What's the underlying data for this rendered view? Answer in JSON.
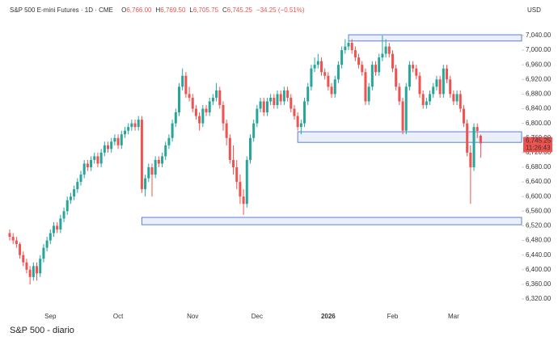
{
  "chart_data": {
    "type": "candlestick",
    "title": "S&P 500 E-mini Futures · 1D · CME",
    "ohlc_fields": [
      {
        "name": "O",
        "value": 6766,
        "value_label": "6,766.00"
      },
      {
        "name": "H",
        "value": 6769.5,
        "value_label": "6,769.50"
      },
      {
        "name": "L",
        "value": 6705.75,
        "value_label": "6,705.75"
      },
      {
        "name": "C",
        "value": 6745.25,
        "value_label": "6,745.25"
      }
    ],
    "change_label": "−34.25 (−0.51%)",
    "currency": "USD",
    "last_price": 6745.25,
    "last_price_label": "6,745.25",
    "countdown": "11:26:43",
    "caption": "S&P 500 - diario",
    "up_color": "#26a69a",
    "down_color": "#ef5350",
    "zone_color": "#5b7fd6",
    "ylim": [
      6298,
      7126
    ],
    "yticks": [
      {
        "value": 6320,
        "label": "6,320.00"
      },
      {
        "value": 6360,
        "label": "6,360.00"
      },
      {
        "value": 6400,
        "label": "6,400.00"
      },
      {
        "value": 6440,
        "label": "6,440.00"
      },
      {
        "value": 6480,
        "label": "6,480.00"
      },
      {
        "value": 6520,
        "label": "6,520.00"
      },
      {
        "value": 6560,
        "label": "6,560.00"
      },
      {
        "value": 6600,
        "label": "6,600.00"
      },
      {
        "value": 6640,
        "label": "6,640.00"
      },
      {
        "value": 6680,
        "label": "6,680.00"
      },
      {
        "value": 6720,
        "label": "6,720.00"
      },
      {
        "value": 6760,
        "label": "6,760.00"
      },
      {
        "value": 6800,
        "label": "6,800.00"
      },
      {
        "value": 6840,
        "label": "6,840.00"
      },
      {
        "value": 6880,
        "label": "6,880.00"
      },
      {
        "value": 6920,
        "label": "6,920.00"
      },
      {
        "value": 6960,
        "label": "6,960.00"
      },
      {
        "value": 7000,
        "label": "7,000.00"
      },
      {
        "value": 7040,
        "label": "7,040.00"
      }
    ],
    "zones": [
      {
        "start": 100,
        "values": [
          7025,
          7042
        ]
      },
      {
        "start": 85,
        "values": [
          6748,
          6777
        ]
      },
      {
        "start": 39,
        "values": [
          6523,
          6543
        ]
      }
    ],
    "categories": [
      null,
      null,
      null,
      null,
      null,
      null,
      null,
      null,
      null,
      null,
      null,
      null,
      "Sep",
      null,
      null,
      null,
      null,
      null,
      null,
      null,
      null,
      null,
      null,
      null,
      null,
      null,
      null,
      null,
      null,
      null,
      null,
      null,
      "Oct",
      null,
      null,
      null,
      null,
      null,
      null,
      null,
      null,
      null,
      null,
      null,
      null,
      null,
      null,
      null,
      null,
      null,
      null,
      null,
      null,
      null,
      "Nov",
      null,
      null,
      null,
      null,
      null,
      null,
      null,
      null,
      null,
      null,
      null,
      null,
      null,
      null,
      null,
      null,
      null,
      null,
      "Dec",
      null,
      null,
      null,
      null,
      null,
      null,
      null,
      null,
      null,
      null,
      null,
      null,
      null,
      null,
      null,
      null,
      null,
      null,
      null,
      null,
      "2026",
      null,
      null,
      null,
      null,
      null,
      null,
      null,
      null,
      null,
      null,
      null,
      null,
      null,
      null,
      null,
      null,
      null,
      null,
      "Feb",
      null,
      null,
      null,
      null,
      null,
      null,
      null,
      null,
      null,
      null,
      null,
      null,
      null,
      null,
      null,
      null,
      null,
      "Mar",
      null,
      null,
      null,
      null,
      null,
      null,
      null,
      null
    ],
    "ohlc": [
      [
        6500,
        6510,
        6480,
        6490
      ],
      [
        6490,
        6500,
        6470,
        6480
      ],
      [
        6480,
        6490,
        6460,
        6470
      ],
      [
        6470,
        6475,
        6430,
        6440
      ],
      [
        6440,
        6450,
        6410,
        6420
      ],
      [
        6420,
        6430,
        6390,
        6400
      ],
      [
        6400,
        6410,
        6360,
        6380
      ],
      [
        6380,
        6420,
        6370,
        6410
      ],
      [
        6410,
        6420,
        6370,
        6390
      ],
      [
        6390,
        6440,
        6380,
        6430
      ],
      [
        6430,
        6470,
        6420,
        6460
      ],
      [
        6460,
        6490,
        6450,
        6480
      ],
      [
        6480,
        6510,
        6470,
        6500
      ],
      [
        6500,
        6530,
        6490,
        6520
      ],
      [
        6520,
        6530,
        6500,
        6510
      ],
      [
        6510,
        6550,
        6500,
        6540
      ],
      [
        6540,
        6570,
        6530,
        6560
      ],
      [
        6560,
        6600,
        6550,
        6590
      ],
      [
        6590,
        6610,
        6580,
        6600
      ],
      [
        6600,
        6630,
        6590,
        6620
      ],
      [
        6620,
        6650,
        6610,
        6640
      ],
      [
        6640,
        6670,
        6630,
        6660
      ],
      [
        6660,
        6700,
        6650,
        6690
      ],
      [
        6690,
        6700,
        6670,
        6680
      ],
      [
        6680,
        6710,
        6670,
        6700
      ],
      [
        6700,
        6720,
        6690,
        6710
      ],
      [
        6710,
        6720,
        6680,
        6690
      ],
      [
        6690,
        6730,
        6680,
        6720
      ],
      [
        6720,
        6750,
        6710,
        6740
      ],
      [
        6740,
        6750,
        6720,
        6730
      ],
      [
        6730,
        6760,
        6720,
        6750
      ],
      [
        6750,
        6770,
        6740,
        6760
      ],
      [
        6760,
        6770,
        6730,
        6740
      ],
      [
        6740,
        6780,
        6730,
        6770
      ],
      [
        6770,
        6790,
        6760,
        6780
      ],
      [
        6780,
        6800,
        6770,
        6790
      ],
      [
        6790,
        6810,
        6780,
        6800
      ],
      [
        6800,
        6810,
        6780,
        6790
      ],
      [
        6790,
        6820,
        6780,
        6810
      ],
      [
        6810,
        6820,
        6610,
        6620
      ],
      [
        6620,
        6660,
        6600,
        6650
      ],
      [
        6650,
        6690,
        6640,
        6680
      ],
      [
        6680,
        6690,
        6600,
        6660
      ],
      [
        6660,
        6710,
        6650,
        6700
      ],
      [
        6700,
        6710,
        6680,
        6690
      ],
      [
        6690,
        6720,
        6680,
        6710
      ],
      [
        6710,
        6750,
        6700,
        6740
      ],
      [
        6740,
        6770,
        6730,
        6760
      ],
      [
        6760,
        6810,
        6750,
        6800
      ],
      [
        6800,
        6840,
        6790,
        6830
      ],
      [
        6830,
        6910,
        6820,
        6900
      ],
      [
        6900,
        6950,
        6890,
        6930
      ],
      [
        6930,
        6940,
        6870,
        6880
      ],
      [
        6880,
        6900,
        6860,
        6870
      ],
      [
        6870,
        6880,
        6830,
        6840
      ],
      [
        6840,
        6850,
        6810,
        6820
      ],
      [
        6820,
        6830,
        6780,
        6800
      ],
      [
        6800,
        6850,
        6790,
        6840
      ],
      [
        6840,
        6850,
        6820,
        6830
      ],
      [
        6830,
        6870,
        6820,
        6860
      ],
      [
        6860,
        6880,
        6850,
        6870
      ],
      [
        6870,
        6910,
        6860,
        6890
      ],
      [
        6890,
        6900,
        6840,
        6850
      ],
      [
        6850,
        6860,
        6780,
        6800
      ],
      [
        6800,
        6810,
        6740,
        6760
      ],
      [
        6760,
        6770,
        6690,
        6700
      ],
      [
        6700,
        6740,
        6660,
        6680
      ],
      [
        6680,
        6700,
        6620,
        6640
      ],
      [
        6640,
        6660,
        6580,
        6600
      ],
      [
        6600,
        6620,
        6550,
        6580
      ],
      [
        6580,
        6710,
        6570,
        6700
      ],
      [
        6700,
        6770,
        6690,
        6760
      ],
      [
        6760,
        6810,
        6750,
        6800
      ],
      [
        6800,
        6850,
        6790,
        6840
      ],
      [
        6840,
        6870,
        6830,
        6860
      ],
      [
        6860,
        6870,
        6820,
        6830
      ],
      [
        6830,
        6870,
        6820,
        6860
      ],
      [
        6860,
        6880,
        6850,
        6870
      ],
      [
        6870,
        6880,
        6840,
        6850
      ],
      [
        6850,
        6890,
        6840,
        6880
      ],
      [
        6880,
        6890,
        6850,
        6860
      ],
      [
        6860,
        6900,
        6850,
        6890
      ],
      [
        6890,
        6900,
        6860,
        6870
      ],
      [
        6870,
        6880,
        6830,
        6840
      ],
      [
        6840,
        6850,
        6810,
        6820
      ],
      [
        6820,
        6830,
        6780,
        6790
      ],
      [
        6790,
        6810,
        6770,
        6800
      ],
      [
        6800,
        6870,
        6790,
        6860
      ],
      [
        6860,
        6910,
        6850,
        6900
      ],
      [
        6900,
        6960,
        6890,
        6950
      ],
      [
        6950,
        6980,
        6940,
        6960
      ],
      [
        6960,
        6990,
        6950,
        6970
      ],
      [
        6970,
        6980,
        6930,
        6940
      ],
      [
        6940,
        6950,
        6920,
        6930
      ],
      [
        6930,
        6940,
        6890,
        6900
      ],
      [
        6900,
        6910,
        6870,
        6880
      ],
      [
        6880,
        6930,
        6870,
        6920
      ],
      [
        6920,
        6970,
        6910,
        6960
      ],
      [
        6960,
        7010,
        6950,
        7000
      ],
      [
        7000,
        7030,
        6990,
        7010
      ],
      [
        7010,
        7030,
        7000,
        7020
      ],
      [
        7020,
        7030,
        6990,
        7000
      ],
      [
        7000,
        7010,
        6970,
        6980
      ],
      [
        6980,
        6990,
        6950,
        6960
      ],
      [
        6960,
        6970,
        6930,
        6940
      ],
      [
        6940,
        6950,
        6850,
        6860
      ],
      [
        6860,
        6910,
        6850,
        6900
      ],
      [
        6900,
        6970,
        6890,
        6960
      ],
      [
        6960,
        6970,
        6930,
        6940
      ],
      [
        6940,
        6990,
        6930,
        6980
      ],
      [
        6980,
        7040,
        6970,
        6990
      ],
      [
        6990,
        7030,
        6980,
        7010
      ],
      [
        7010,
        7020,
        6980,
        6990
      ],
      [
        6990,
        7000,
        6940,
        6950
      ],
      [
        6950,
        6960,
        6890,
        6900
      ],
      [
        6900,
        6910,
        6850,
        6860
      ],
      [
        6860,
        6870,
        6770,
        6780
      ],
      [
        6780,
        6910,
        6770,
        6900
      ],
      [
        6900,
        6970,
        6890,
        6960
      ],
      [
        6960,
        6970,
        6940,
        6950
      ],
      [
        6950,
        6960,
        6920,
        6930
      ],
      [
        6930,
        6940,
        6870,
        6880
      ],
      [
        6880,
        6890,
        6840,
        6850
      ],
      [
        6850,
        6870,
        6840,
        6860
      ],
      [
        6860,
        6890,
        6850,
        6880
      ],
      [
        6880,
        6910,
        6870,
        6900
      ],
      [
        6900,
        6930,
        6890,
        6920
      ],
      [
        6920,
        6930,
        6870,
        6880
      ],
      [
        6880,
        6960,
        6870,
        6950
      ],
      [
        6950,
        6960,
        6910,
        6920
      ],
      [
        6920,
        6930,
        6870,
        6880
      ],
      [
        6880,
        6890,
        6850,
        6860
      ],
      [
        6860,
        6890,
        6850,
        6880
      ],
      [
        6880,
        6890,
        6830,
        6840
      ],
      [
        6840,
        6850,
        6790,
        6800
      ],
      [
        6800,
        6810,
        6710,
        6720
      ],
      [
        6720,
        6740,
        6580,
        6680
      ],
      [
        6680,
        6800,
        6670,
        6790
      ],
      [
        6790,
        6800,
        6760,
        6779.5
      ],
      [
        6766,
        6769.5,
        6705.75,
        6745.25
      ]
    ]
  }
}
